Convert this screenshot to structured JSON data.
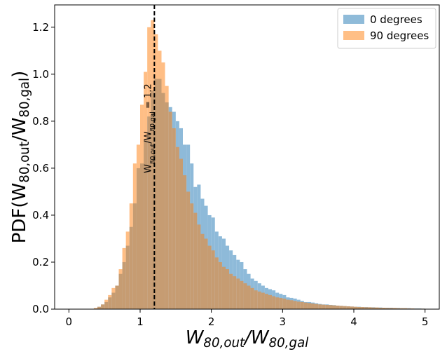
{
  "chart_data": {
    "type": "histogram",
    "xlabel": [
      "W",
      "80,out",
      "/W",
      "80,gal"
    ],
    "ylabel": [
      "PDF(W",
      "80,out",
      "/W",
      "80,gal",
      ")"
    ],
    "bins": [
      0,
      0.05,
      0.1,
      0.15,
      0.2,
      0.25,
      0.3,
      0.35,
      0.4,
      0.45,
      0.5,
      0.55,
      0.6,
      0.65,
      0.7,
      0.75,
      0.8,
      0.85,
      0.9,
      0.95,
      1,
      1.05,
      1.1,
      1.15,
      1.2,
      1.25,
      1.3,
      1.35,
      1.4,
      1.45,
      1.5,
      1.55,
      1.6,
      1.65,
      1.7,
      1.75,
      1.8,
      1.85,
      1.9,
      1.95,
      2,
      2.05,
      2.1,
      2.15,
      2.2,
      2.25,
      2.3,
      2.35,
      2.4,
      2.45,
      2.5,
      2.55,
      2.6,
      2.65,
      2.7,
      2.75,
      2.8,
      2.85,
      2.9,
      2.95,
      3,
      3.05,
      3.1,
      3.15,
      3.2,
      3.25,
      3.3,
      3.35,
      3.4,
      3.45,
      3.5,
      3.55,
      3.6,
      3.65,
      3.7,
      3.75,
      3.8,
      3.85,
      3.9,
      3.95,
      4,
      4.05,
      4.1,
      4.15,
      4.2,
      4.25,
      4.3,
      4.35,
      4.4,
      4.45,
      4.5,
      4.55,
      4.6,
      4.65,
      4.7,
      4.75,
      4.8,
      4.85,
      4.9,
      4.95,
      5
    ],
    "series": [
      {
        "name": "0 degrees",
        "color": "#1f77b4",
        "opacity": 0.5,
        "values": [
          0,
          0,
          0,
          0,
          0,
          0,
          0,
          0.003,
          0.01,
          0.02,
          0.03,
          0.05,
          0.07,
          0.1,
          0.15,
          0.2,
          0.27,
          0.35,
          0.45,
          0.6,
          0.62,
          0.72,
          0.82,
          0.93,
          0.98,
          0.98,
          0.92,
          0.88,
          0.86,
          0.84,
          0.8,
          0.77,
          0.7,
          0.7,
          0.62,
          0.52,
          0.53,
          0.47,
          0.44,
          0.4,
          0.39,
          0.33,
          0.31,
          0.3,
          0.27,
          0.25,
          0.23,
          0.21,
          0.2,
          0.17,
          0.15,
          0.13,
          0.12,
          0.11,
          0.1,
          0.09,
          0.085,
          0.08,
          0.07,
          0.065,
          0.06,
          0.05,
          0.048,
          0.045,
          0.04,
          0.035,
          0.03,
          0.03,
          0.028,
          0.025,
          0.022,
          0.02,
          0.02,
          0.018,
          0.017,
          0.015,
          0.014,
          0.013,
          0.012,
          0.011,
          0.01,
          0.01,
          0.009,
          0.009,
          0.008,
          0.008,
          0.007,
          0.007,
          0.006,
          0.006,
          0.006,
          0.005,
          0.005,
          0.004,
          0.004,
          0.004,
          0.003,
          0.003,
          0.003,
          0.002
        ]
      },
      {
        "name": "90 degrees",
        "color": "#ff7f0e",
        "opacity": 0.5,
        "values": [
          0,
          0,
          0,
          0,
          0,
          0,
          0,
          0.005,
          0.01,
          0.02,
          0.04,
          0.06,
          0.09,
          0.1,
          0.17,
          0.26,
          0.33,
          0.45,
          0.62,
          0.7,
          0.87,
          1.01,
          1.2,
          1.23,
          1.17,
          1.1,
          1.05,
          0.95,
          0.84,
          0.77,
          0.69,
          0.64,
          0.57,
          0.5,
          0.45,
          0.41,
          0.36,
          0.32,
          0.3,
          0.27,
          0.25,
          0.22,
          0.2,
          0.18,
          0.17,
          0.15,
          0.14,
          0.13,
          0.12,
          0.11,
          0.1,
          0.09,
          0.08,
          0.075,
          0.07,
          0.065,
          0.06,
          0.055,
          0.05,
          0.048,
          0.045,
          0.04,
          0.038,
          0.035,
          0.032,
          0.03,
          0.028,
          0.026,
          0.024,
          0.022,
          0.02,
          0.019,
          0.018,
          0.017,
          0.016,
          0.015,
          0.014,
          0.013,
          0.012,
          0.011,
          0.01,
          0.009,
          0.009,
          0.008,
          0.008,
          0.007,
          0.007,
          0.006,
          0.006,
          0.005,
          0.005,
          0.005,
          0.004,
          0.004,
          0.004,
          0.003,
          0.003,
          0.002,
          0.002,
          0.002
        ]
      }
    ],
    "xlim": [
      -0.2,
      5.2
    ],
    "ylim": [
      0,
      1.295
    ],
    "xticks": [
      0,
      1,
      2,
      3,
      4,
      5
    ],
    "yticks": [
      {
        "value": 0,
        "label": "0.0"
      },
      {
        "value": 0.2,
        "label": "0.2"
      },
      {
        "value": 0.4,
        "label": "0.4"
      },
      {
        "value": 0.6,
        "label": "0.6"
      },
      {
        "value": 0.8,
        "label": "0.8"
      },
      {
        "value": 1,
        "label": "1.0"
      },
      {
        "value": 1.2,
        "label": "1.2"
      }
    ],
    "grid": false,
    "legend": "upper right",
    "vline": {
      "x": 1.2,
      "color": "#000000",
      "text": [
        "W",
        "80,out",
        "/W",
        "80,gal",
        " = 1.2"
      ]
    }
  }
}
